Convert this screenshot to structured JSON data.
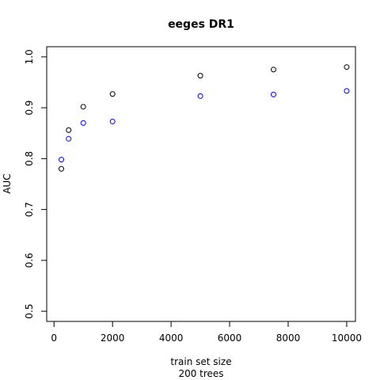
{
  "chart_data": {
    "type": "scatter",
    "title": "eeges DR1",
    "xlabel": "train set size",
    "xlabel2": "200 trees",
    "ylabel": "AUC",
    "xlim": [
      -250,
      10300
    ],
    "ylim": [
      0.48,
      1.02
    ],
    "xticks": [
      0,
      2000,
      4000,
      6000,
      8000,
      10000
    ],
    "yticks": [
      0.5,
      0.6,
      0.7,
      0.8,
      0.9,
      1.0
    ],
    "ytick_labels": [
      "0.5",
      "0.6",
      "0.7",
      "0.8",
      "0.9",
      "1.0"
    ],
    "grid": false,
    "marker": "open-circle",
    "series": [
      {
        "color": "#000000",
        "x": [
          250,
          500,
          1000,
          2000,
          5000,
          7500,
          10000
        ],
        "y": [
          0.78,
          0.856,
          0.902,
          0.927,
          0.963,
          0.975,
          0.98
        ]
      },
      {
        "color": "#0000ff",
        "x": [
          250,
          500,
          1000,
          2000,
          5000,
          7500,
          10000
        ],
        "y": [
          0.798,
          0.839,
          0.87,
          0.873,
          0.923,
          0.926,
          0.933
        ]
      }
    ]
  }
}
